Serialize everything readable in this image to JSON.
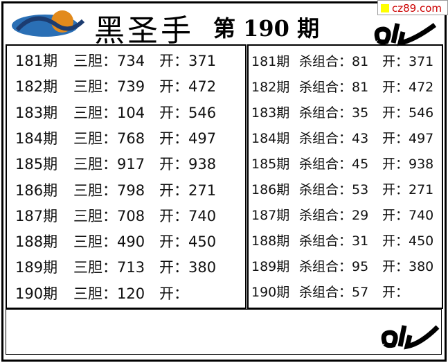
{
  "header": {
    "title": "黑圣手",
    "issue": "第 190 期",
    "watermark": "cz89.com"
  },
  "left_table": {
    "rows": [
      [
        "181期",
        "三胆：734",
        "开：371"
      ],
      [
        "182期",
        "三胆：739",
        "开：472"
      ],
      [
        "183期",
        "三胆：104",
        "开：546"
      ],
      [
        "184期",
        "三胆：768",
        "开：497"
      ],
      [
        "185期",
        "三胆：917",
        "开：938"
      ],
      [
        "186期",
        "三胆：798",
        "开：271"
      ],
      [
        "187期",
        "三胆：708",
        "开：740"
      ],
      [
        "188期",
        "三胆：490",
        "开：450"
      ],
      [
        "189期",
        "三胆：713",
        "开：380"
      ],
      [
        "190期",
        "三胆：120",
        "开："
      ]
    ]
  },
  "right_table": {
    "rows": [
      [
        "181期",
        "杀组合：81",
        "开：371"
      ],
      [
        "182期",
        "杀组合：81",
        "开：472"
      ],
      [
        "183期",
        "杀组合：35",
        "开：546"
      ],
      [
        "184期",
        "杀组合：43",
        "开：497"
      ],
      [
        "185期",
        "杀组合：45",
        "开：938"
      ],
      [
        "186期",
        "杀组合：53",
        "开：271"
      ],
      [
        "187期",
        "杀组合：29",
        "开：740"
      ],
      [
        "188期",
        "杀组合：31",
        "开：450"
      ],
      [
        "189期",
        "杀组合：95",
        "开：380"
      ],
      [
        "190期",
        "杀组合：57",
        "开："
      ]
    ]
  }
}
